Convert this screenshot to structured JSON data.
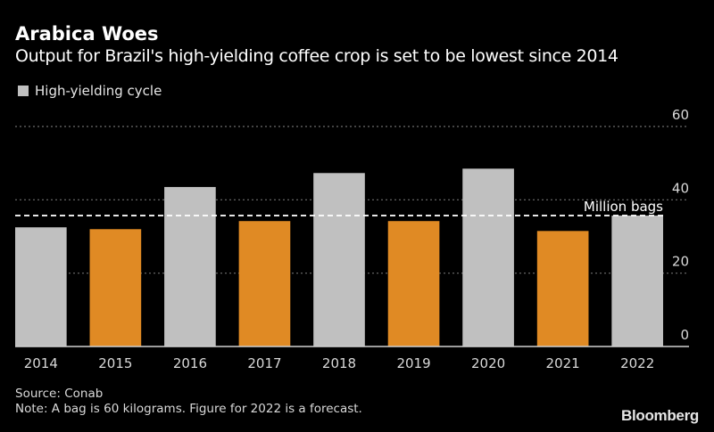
{
  "chart_data": {
    "type": "bar",
    "title": "Arabica Woes",
    "subtitle": "Output for Brazil's high-yielding coffee crop is set to be lowest since 2014",
    "xlabel": "",
    "ylabel": "Million bags",
    "unit_label": "Million bags",
    "categories": [
      "2014",
      "2015",
      "2016",
      "2017",
      "2018",
      "2019",
      "2020",
      "2021",
      "2022"
    ],
    "values": [
      32.5,
      32.0,
      43.5,
      34.2,
      47.3,
      34.2,
      48.5,
      31.5,
      35.7
    ],
    "high_yielding_cycle": [
      true,
      false,
      true,
      false,
      true,
      false,
      true,
      false,
      true
    ],
    "ylim": [
      0,
      60
    ],
    "yticks": [
      0,
      20,
      40,
      60
    ],
    "ytick_labels": [
      "0",
      "20",
      "40",
      "60"
    ],
    "reference_line": {
      "value": 35.7,
      "style": "dashed",
      "label": "Million bags"
    },
    "grid": true,
    "y_axis_position": "right",
    "legend": {
      "position": "top-left",
      "entries": [
        {
          "label": "High-yielding cycle",
          "color": "#c0c0c0"
        }
      ]
    },
    "colors": {
      "high_yielding": "#c0c0c0",
      "low_yielding": "#e08a24",
      "background": "#000000",
      "gridline": "#6e6e6e",
      "reference_line": "#ffffff"
    }
  },
  "footer": {
    "source": "Source: Conab",
    "note": "Note: A bag is 60 kilograms. Figure for 2022 is a forecast."
  },
  "brand": "Bloomberg"
}
